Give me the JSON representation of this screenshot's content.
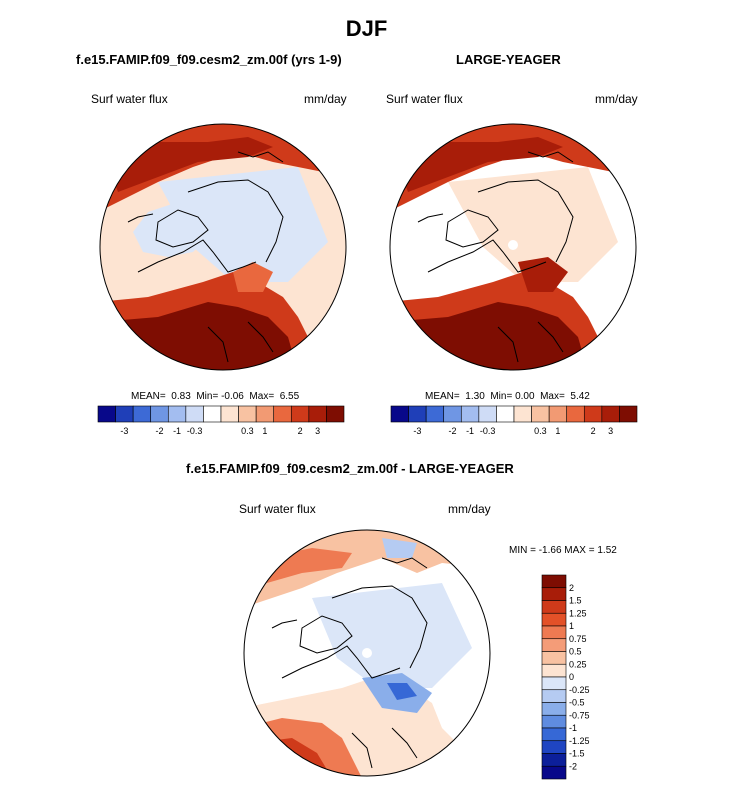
{
  "figure": {
    "title": "DJF",
    "panels": [
      {
        "title": "f.e15.FAMIP.f09_f09.cesm2_zm.00f (yrs 1-9)",
        "variable": "Surf water flux",
        "units": "mm/day",
        "stats": {
          "mean_label": "MEAN=",
          "mean": "0.83",
          "min_label": "Min=",
          "min": "-0.06",
          "max_label": "Max=",
          "max": "6.55"
        }
      },
      {
        "title": "LARGE-YEAGER",
        "variable": "Surf water flux",
        "units": "mm/day",
        "stats": {
          "mean_label": "MEAN=",
          "mean": "1.30",
          "min_label": "Min=",
          "min": "0.00",
          "max_label": "Max=",
          "max": "5.42"
        }
      },
      {
        "title": "f.e15.FAMIP.f09_f09.cesm2_zm.00f - LARGE-YEAGER",
        "variable": "Surf water flux",
        "units": "mm/day",
        "stats_text": "MIN = -1.66 MAX = 1.52"
      }
    ],
    "colorbar_horizontal": {
      "labels": [
        "-3",
        "-2",
        "-1",
        "-0.3",
        "0.3",
        "1",
        "2",
        "3"
      ],
      "colors": [
        "#08088a",
        "#1f3fb8",
        "#3d6ad6",
        "#6f96e4",
        "#a3bdf0",
        "#cfdcf6",
        "#ffffff",
        "#fde4d2",
        "#f8c2a2",
        "#f29a73",
        "#e9683e",
        "#cf3a1a",
        "#a81d09",
        "#7e0d02"
      ]
    },
    "colorbar_vertical": {
      "labels": [
        "2",
        "1.5",
        "1.25",
        "1",
        "0.75",
        "0.5",
        "0.25",
        "0",
        "-0.25",
        "-0.5",
        "-0.75",
        "-1",
        "-1.25",
        "-1.5",
        "-2"
      ],
      "colors": [
        "#7e0d02",
        "#a81d09",
        "#cf3a1a",
        "#e35128",
        "#ee7a52",
        "#f49c78",
        "#f8c2a2",
        "#fde4d2",
        "#dbe6f8",
        "#b5cbf2",
        "#8aaeea",
        "#5f8ce0",
        "#3668d6",
        "#1f45c2",
        "#0c1f9a",
        "#08088a"
      ]
    }
  }
}
